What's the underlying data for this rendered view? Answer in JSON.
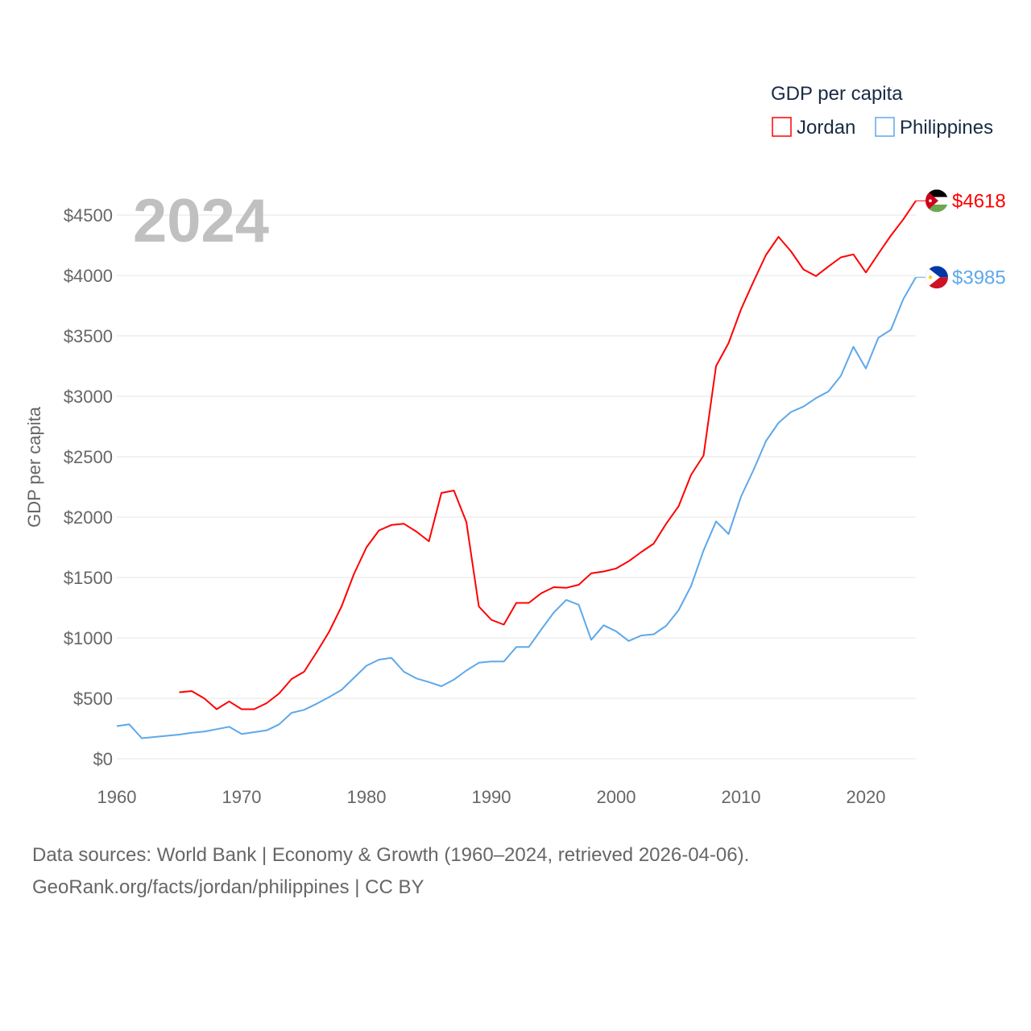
{
  "chart_data": {
    "type": "line",
    "title": "GDP per capita",
    "year_label": "2024",
    "xlabel": "",
    "ylabel": "GDP per capita",
    "xlim": [
      1960,
      2024
    ],
    "ylim": [
      0,
      4700
    ],
    "x_ticks": [
      "1960",
      "1970",
      "1980",
      "1990",
      "2000",
      "2010",
      "2020"
    ],
    "y_ticks": [
      "$0",
      "$500",
      "$1000",
      "$1500",
      "$2000",
      "$2500",
      "$3000",
      "$3500",
      "$4000",
      "$4500"
    ],
    "y_tick_values": [
      0,
      500,
      1000,
      1500,
      2000,
      2500,
      3000,
      3500,
      4000,
      4500
    ],
    "grid": true,
    "legend_placement": "top-right",
    "series": [
      {
        "name": "Jordan",
        "color": "#ff0000",
        "end_label": "$4618",
        "flag": "jordan-flag",
        "start_year": 1965,
        "values": [
          550,
          560,
          500,
          410,
          475,
          410,
          410,
          460,
          540,
          660,
          720,
          880,
          1050,
          1260,
          1530,
          1750,
          1890,
          1935,
          1945,
          1880,
          1800,
          2200,
          2220,
          1960,
          1260,
          1150,
          1110,
          1290,
          1290,
          1370,
          1420,
          1415,
          1440,
          1535,
          1550,
          1575,
          1635,
          1710,
          1780,
          1945,
          2090,
          2350,
          2510,
          3250,
          3440,
          3720,
          3950,
          4170,
          4320,
          4200,
          4050,
          3995,
          4075,
          4150,
          4175,
          4025,
          4180,
          4330,
          4465,
          4618
        ]
      },
      {
        "name": "Philippines",
        "color": "#5ea8ea",
        "end_label": "$3985",
        "flag": "philippines-flag",
        "start_year": 1960,
        "values": [
          270,
          285,
          170,
          180,
          190,
          200,
          215,
          225,
          245,
          265,
          205,
          220,
          235,
          285,
          380,
          405,
          455,
          510,
          570,
          670,
          770,
          820,
          835,
          720,
          665,
          635,
          600,
          655,
          730,
          795,
          805,
          805,
          925,
          925,
          1070,
          1210,
          1315,
          1275,
          985,
          1105,
          1055,
          975,
          1020,
          1030,
          1100,
          1230,
          1430,
          1725,
          1965,
          1860,
          2170,
          2390,
          2630,
          2780,
          2870,
          2915,
          2985,
          3040,
          3170,
          3410,
          3230,
          3485,
          3550,
          3805,
          3985
        ]
      }
    ]
  },
  "footer": {
    "line1": "Data sources: World Bank | Economy & Growth (1960–2024, retrieved 2026-04-06).",
    "line2": "GeoRank.org/facts/jordan/philippines | CC BY"
  }
}
